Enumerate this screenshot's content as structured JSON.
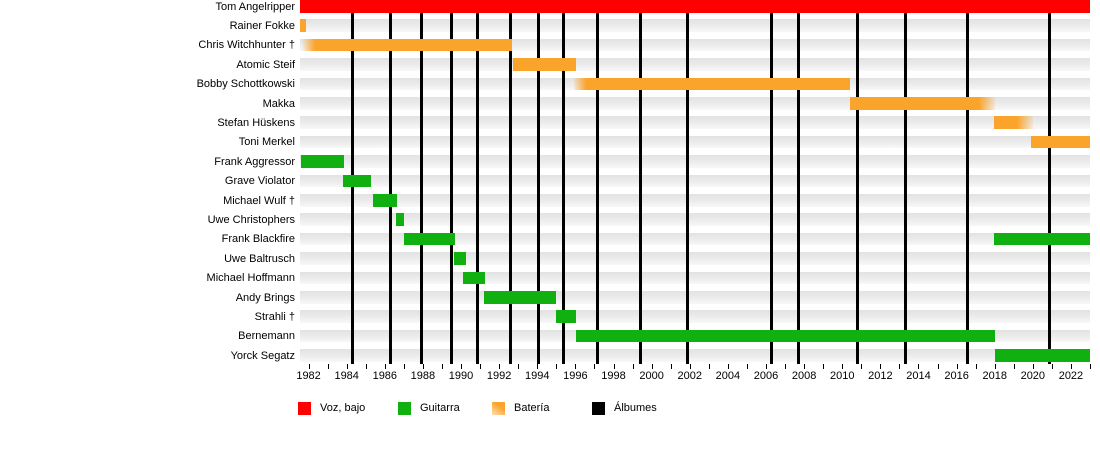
{
  "chart_data": {
    "type": "gantt-timeline",
    "title": "",
    "x_axis": {
      "start": 1981.55,
      "end": 2023.0,
      "tick_step": 1,
      "tick_first": 1982,
      "tick_last": 2023,
      "label_years": [
        "1982",
        "1984",
        "1986",
        "1988",
        "1990",
        "1992",
        "1994",
        "1996",
        "1998",
        "2000",
        "2002",
        "2004",
        "2006",
        "2008",
        "2010",
        "2012",
        "2014",
        "2016",
        "2018",
        "2020",
        "2022"
      ]
    },
    "rows": [
      {
        "label": "Tom Angelripper",
        "role": "vocals",
        "bars": [
          {
            "start": 1981.55,
            "end": 2023.0,
            "fade": "none"
          }
        ]
      },
      {
        "label": "Rainer Fokke",
        "role": "drums",
        "bars": [
          {
            "start": 1981.55,
            "end": 1981.85,
            "fade": "none"
          }
        ]
      },
      {
        "label": "Chris Witchhunter †",
        "role": "drums",
        "bars": [
          {
            "start": 1981.7,
            "end": 1992.7,
            "fade": "left"
          }
        ]
      },
      {
        "label": "Atomic Steif",
        "role": "drums",
        "bars": [
          {
            "start": 1992.7,
            "end": 1996.05,
            "fade": "none"
          }
        ]
      },
      {
        "label": "Bobby Schottkowski",
        "role": "drums",
        "bars": [
          {
            "start": 1995.95,
            "end": 2010.4,
            "fade": "left"
          }
        ]
      },
      {
        "label": "Makka",
        "role": "drums",
        "bars": [
          {
            "start": 2010.4,
            "end": 2018.0,
            "fade": "right"
          }
        ]
      },
      {
        "label": "Stefan Hüskens",
        "role": "drums",
        "bars": [
          {
            "start": 2017.95,
            "end": 2020.0,
            "fade": "right"
          }
        ]
      },
      {
        "label": "Toni Merkel",
        "role": "drums",
        "bars": [
          {
            "start": 2019.9,
            "end": 2023.0,
            "fade": "none"
          }
        ]
      },
      {
        "label": "Frank Aggressor",
        "role": "guitar",
        "bars": [
          {
            "start": 1981.58,
            "end": 1983.85,
            "fade": "none"
          }
        ]
      },
      {
        "label": "Grave Violator",
        "role": "guitar",
        "bars": [
          {
            "start": 1983.8,
            "end": 1985.3,
            "fade": "none"
          }
        ]
      },
      {
        "label": "Michael Wulf †",
        "role": "guitar",
        "bars": [
          {
            "start": 1985.4,
            "end": 1986.65,
            "fade": "none"
          }
        ]
      },
      {
        "label": "Uwe Christophers",
        "role": "guitar",
        "bars": [
          {
            "start": 1986.6,
            "end": 1987.0,
            "fade": "none"
          }
        ]
      },
      {
        "label": "Frank Blackfire",
        "role": "guitar",
        "bars": [
          {
            "start": 1987.0,
            "end": 1989.7,
            "fade": "none"
          },
          {
            "start": 2017.95,
            "end": 2023.0,
            "fade": "none"
          }
        ]
      },
      {
        "label": "Uwe Baltrusch",
        "role": "guitar",
        "bars": [
          {
            "start": 1989.65,
            "end": 1990.25,
            "fade": "none"
          }
        ]
      },
      {
        "label": "Michael Hoffmann",
        "role": "guitar",
        "bars": [
          {
            "start": 1990.1,
            "end": 1991.25,
            "fade": "none"
          }
        ]
      },
      {
        "label": "Andy Brings",
        "role": "guitar",
        "bars": [
          {
            "start": 1991.2,
            "end": 1995.0,
            "fade": "none"
          }
        ]
      },
      {
        "label": "Strahli †",
        "role": "guitar",
        "bars": [
          {
            "start": 1995.0,
            "end": 1996.05,
            "fade": "none"
          }
        ]
      },
      {
        "label": "Bernemann",
        "role": "guitar",
        "bars": [
          {
            "start": 1996.05,
            "end": 2018.0,
            "fade": "none"
          }
        ]
      },
      {
        "label": "Yorck Segatz",
        "role": "guitar",
        "bars": [
          {
            "start": 2018.0,
            "end": 2023.0,
            "fade": "none"
          }
        ]
      }
    ],
    "album_lines": [
      1984.3,
      1986.3,
      1987.95,
      1989.5,
      1990.85,
      1992.6,
      1994.05,
      1995.35,
      1997.15,
      1999.4,
      2001.9,
      2006.3,
      2007.7,
      2010.8,
      2013.3,
      2016.55,
      2020.9
    ],
    "legend": [
      {
        "label": "Voz, bajo",
        "role": "vocals"
      },
      {
        "label": "Guitarra",
        "role": "guitar"
      },
      {
        "label": "Batería",
        "role": "drums"
      },
      {
        "label": "Álbumes",
        "role": "albums"
      }
    ],
    "colors": {
      "vocals": "#ff0000",
      "guitar": "#0fb00f",
      "drums": "#fba42c",
      "albums": "#000000",
      "row_band": "#e9e9e9"
    },
    "layout_hints": {
      "grid": "vertical album lines",
      "legend_position": "bottom",
      "row_guides": "light gray bands"
    }
  }
}
